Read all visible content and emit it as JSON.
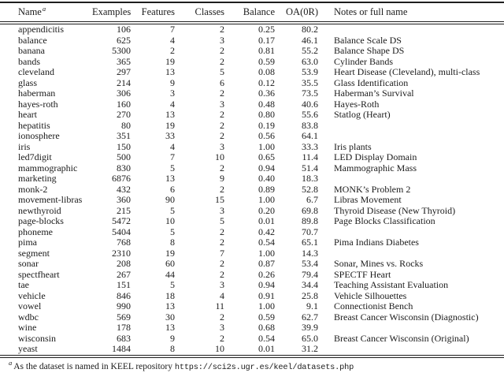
{
  "table": {
    "columns": [
      {
        "key": "name",
        "label": "Name",
        "sup": "a",
        "align": "left"
      },
      {
        "key": "examples",
        "label": "Examples",
        "align": "right"
      },
      {
        "key": "features",
        "label": "Features",
        "align": "right"
      },
      {
        "key": "classes",
        "label": "Classes",
        "align": "right"
      },
      {
        "key": "balance",
        "label": "Balance",
        "align": "right"
      },
      {
        "key": "oa-0r",
        "label": "OA(0R)",
        "align": "right"
      },
      {
        "key": "notes",
        "label": "Notes or full name",
        "align": "left"
      }
    ],
    "rows": [
      [
        "appendicitis",
        "106",
        "7",
        "2",
        "0.25",
        "80.2",
        ""
      ],
      [
        "balance",
        "625",
        "4",
        "3",
        "0.17",
        "46.1",
        "Balance Scale DS"
      ],
      [
        "banana",
        "5300",
        "2",
        "2",
        "0.81",
        "55.2",
        "Balance Shape DS"
      ],
      [
        "bands",
        "365",
        "19",
        "2",
        "0.59",
        "63.0",
        "Cylinder Bands"
      ],
      [
        "cleveland",
        "297",
        "13",
        "5",
        "0.08",
        "53.9",
        "Heart Disease (Cleveland), multi-class"
      ],
      [
        "glass",
        "214",
        "9",
        "6",
        "0.12",
        "35.5",
        "Glass Identification"
      ],
      [
        "haberman",
        "306",
        "3",
        "2",
        "0.36",
        "73.5",
        "Haberman’s Survival"
      ],
      [
        "hayes-roth",
        "160",
        "4",
        "3",
        "0.48",
        "40.6",
        "Hayes-Roth"
      ],
      [
        "heart",
        "270",
        "13",
        "2",
        "0.80",
        "55.6",
        "Statlog (Heart)"
      ],
      [
        "hepatitis",
        "80",
        "19",
        "2",
        "0.19",
        "83.8",
        ""
      ],
      [
        "ionosphere",
        "351",
        "33",
        "2",
        "0.56",
        "64.1",
        ""
      ],
      [
        "iris",
        "150",
        "4",
        "3",
        "1.00",
        "33.3",
        "Iris plants"
      ],
      [
        "led7digit",
        "500",
        "7",
        "10",
        "0.65",
        "11.4",
        "LED Display Domain"
      ],
      [
        "mammographic",
        "830",
        "5",
        "2",
        "0.94",
        "51.4",
        "Mammographic Mass"
      ],
      [
        "marketing",
        "6876",
        "13",
        "9",
        "0.40",
        "18.3",
        ""
      ],
      [
        "monk-2",
        "432",
        "6",
        "2",
        "0.89",
        "52.8",
        "MONK’s Problem 2"
      ],
      [
        "movement-libras",
        "360",
        "90",
        "15",
        "1.00",
        "6.7",
        "Libras Movement"
      ],
      [
        "newthyroid",
        "215",
        "5",
        "3",
        "0.20",
        "69.8",
        "Thyroid Disease (New Thyroid)"
      ],
      [
        "page-blocks",
        "5472",
        "10",
        "5",
        "0.01",
        "89.8",
        "Page Blocks Classification"
      ],
      [
        "phoneme",
        "5404",
        "5",
        "2",
        "0.42",
        "70.7",
        ""
      ],
      [
        "pima",
        "768",
        "8",
        "2",
        "0.54",
        "65.1",
        "Pima Indians Diabetes"
      ],
      [
        "segment",
        "2310",
        "19",
        "7",
        "1.00",
        "14.3",
        ""
      ],
      [
        "sonar",
        "208",
        "60",
        "2",
        "0.87",
        "53.4",
        "Sonar, Mines vs. Rocks"
      ],
      [
        "spectfheart",
        "267",
        "44",
        "2",
        "0.26",
        "79.4",
        "SPECTF Heart"
      ],
      [
        "tae",
        "151",
        "5",
        "3",
        "0.94",
        "34.4",
        "Teaching Assistant Evaluation"
      ],
      [
        "vehicle",
        "846",
        "18",
        "4",
        "0.91",
        "25.8",
        "Vehicle Silhouettes"
      ],
      [
        "vowel",
        "990",
        "13",
        "11",
        "1.00",
        "9.1",
        "Connectionist Bench"
      ],
      [
        "wdbc",
        "569",
        "30",
        "2",
        "0.59",
        "62.7",
        "Breast Cancer Wisconsin (Diagnostic)"
      ],
      [
        "wine",
        "178",
        "13",
        "3",
        "0.68",
        "39.9",
        ""
      ],
      [
        "wisconsin",
        "683",
        "9",
        "2",
        "0.54",
        "65.0",
        "Breast Cancer Wisconsin (Original)"
      ],
      [
        "yeast",
        "1484",
        "8",
        "10",
        "0.01",
        "31.2",
        ""
      ]
    ]
  },
  "footnote": {
    "marker": "a",
    "text": "As the dataset is named in KEEL repository ",
    "url": "https://sci2s.ugr.es/keel/datasets.php"
  },
  "colors": {
    "text": "#1b1b1b",
    "rule": "#1e1e1e",
    "background": "#ffffff"
  }
}
